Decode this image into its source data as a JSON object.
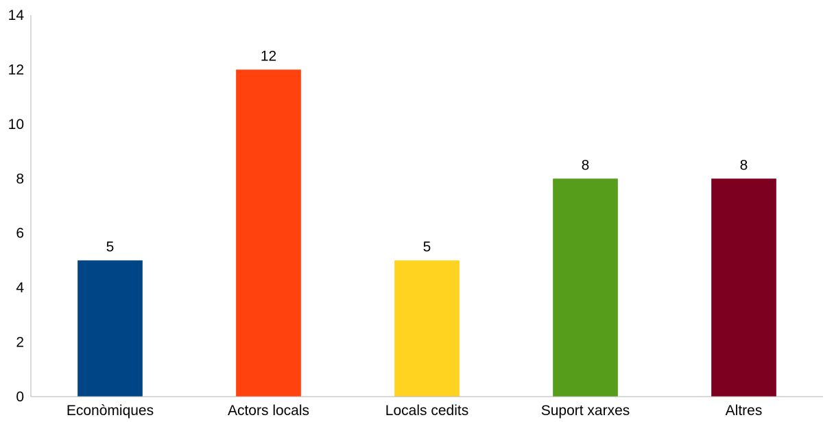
{
  "chart_data": {
    "type": "bar",
    "categories": [
      "Econòmiques",
      "Actors locals",
      "Locals cedits",
      "Suport xarxes",
      "Altres"
    ],
    "values": [
      5,
      12,
      5,
      8,
      8
    ],
    "colors": [
      "#004586",
      "#ff420e",
      "#ffd320",
      "#579d1c",
      "#7e0021"
    ],
    "title": "",
    "xlabel": "",
    "ylabel": "",
    "ylim": [
      0,
      14
    ],
    "yticks": [
      0,
      2,
      4,
      6,
      8,
      10,
      12,
      14
    ],
    "grid": false,
    "legend": "none",
    "data_labels": true
  }
}
